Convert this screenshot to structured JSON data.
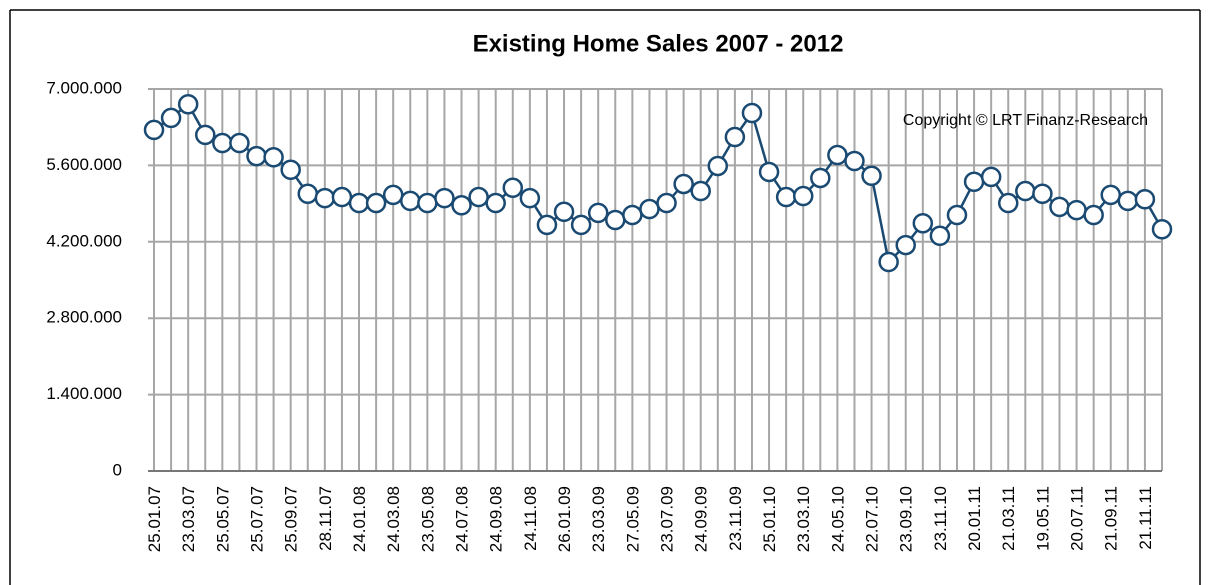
{
  "chart_data": {
    "type": "line",
    "title": "Existing Home Sales 2007 - 2012",
    "annotation": "Copyright © LRT Finanz-Research",
    "categories": [
      "25.01.07",
      null,
      "23.03.07",
      null,
      "25.05.07",
      null,
      "25.07.07",
      null,
      "25.09.07",
      null,
      "28.11.07",
      null,
      "24.01.08",
      null,
      "24.03.08",
      null,
      "23.05.08",
      null,
      "24.07.08",
      null,
      "24.09.08",
      null,
      "24.11.08",
      null,
      "26.01.09",
      null,
      "23.03.09",
      null,
      "27.05.09",
      null,
      "23.07.09",
      null,
      "24.09.09",
      null,
      "23.11.09",
      null,
      "25.01.10",
      null,
      "23.03.10",
      null,
      "24.05.10",
      null,
      "22.07.10",
      null,
      "23.09.10",
      null,
      "23.11.10",
      null,
      "20.01.11",
      null,
      "21.03.11",
      null,
      "19.05.11",
      null,
      "20.07.11",
      null,
      "21.09.11",
      null,
      "21.11.11",
      null
    ],
    "values": [
      6250000,
      6470000,
      6720000,
      6160000,
      6010000,
      6010000,
      5770000,
      5750000,
      5520000,
      5080000,
      5000000,
      5020000,
      4910000,
      4910000,
      5060000,
      4950000,
      4910000,
      5000000,
      4870000,
      5020000,
      4910000,
      5190000,
      5000000,
      4510000,
      4750000,
      4510000,
      4730000,
      4600000,
      4690000,
      4800000,
      4910000,
      5260000,
      5130000,
      5590000,
      6120000,
      6560000,
      5480000,
      5020000,
      5040000,
      5370000,
      5790000,
      5680000,
      5410000,
      3830000,
      4140000,
      4540000,
      4310000,
      4690000,
      5300000,
      5390000,
      4910000,
      5130000,
      5080000,
      4840000,
      4780000,
      4690000,
      5060000,
      4950000,
      4980000,
      4430000
    ],
    "color": "#1a4a72",
    "ylim": [
      0,
      7000000
    ],
    "yticks": [
      0,
      {
        "value": 1400000,
        "label": "1.400.000"
      },
      {
        "value": 2800000,
        "label": "2.800.000"
      },
      {
        "value": 4200000,
        "label": "4.200.000"
      },
      {
        "value": 5600000,
        "label": "5.600.000"
      },
      {
        "value": 7000000,
        "label": "7.000.000"
      }
    ],
    "grid": true
  }
}
